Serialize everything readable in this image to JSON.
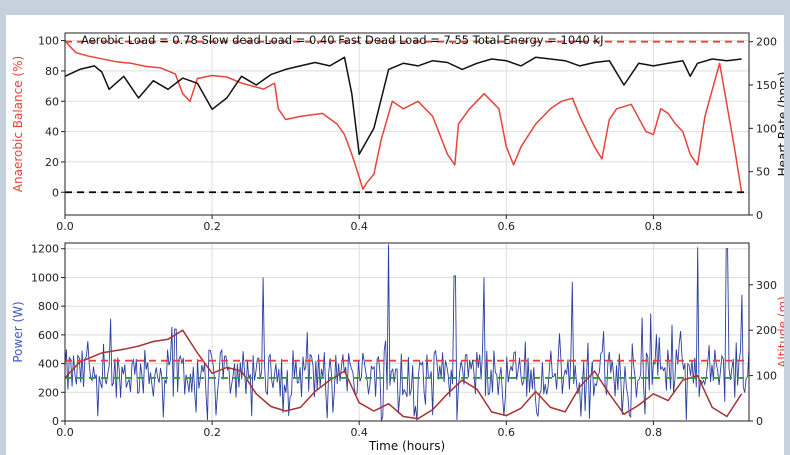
{
  "chart_data": [
    {
      "type": "line",
      "annotation": "Aerobic Load = 0.78    Slow dead Load = 0.40    Fast Dead Load = 7.55    Total Energy = 1040 kJ",
      "xlim": [
        0,
        0.93
      ],
      "xticks": [
        0.0,
        0.2,
        0.4,
        0.6,
        0.8
      ],
      "xtick_labels": [
        "0.0",
        "0.2",
        "0.4",
        "0.6",
        "0.8"
      ],
      "ylabel_left": "Anaerobic Balance (%)",
      "ylabel_right": "Heart Rate (bpm)",
      "ylim_left": [
        -15,
        105
      ],
      "yticks_left": [
        0,
        20,
        40,
        60,
        80,
        100
      ],
      "ylim_right": [
        0,
        210
      ],
      "yticks_right": [
        0,
        50,
        100,
        150,
        200
      ],
      "hlines": [
        {
          "axis": "left",
          "value": 0,
          "color": "#000000",
          "style": "dashed"
        },
        {
          "axis": "right",
          "value": 200,
          "color": "#e8433a",
          "style": "dashed"
        }
      ],
      "series": [
        {
          "axis": "left",
          "color": "#e8433a",
          "x": [
            0.0,
            0.005,
            0.015,
            0.03,
            0.05,
            0.07,
            0.09,
            0.11,
            0.13,
            0.15,
            0.16,
            0.17,
            0.18,
            0.2,
            0.22,
            0.24,
            0.27,
            0.285,
            0.29,
            0.3,
            0.32,
            0.35,
            0.37,
            0.38,
            0.39,
            0.4,
            0.405,
            0.41,
            0.42,
            0.43,
            0.445,
            0.46,
            0.48,
            0.5,
            0.52,
            0.53,
            0.535,
            0.55,
            0.57,
            0.59,
            0.6,
            0.61,
            0.62,
            0.64,
            0.66,
            0.675,
            0.69,
            0.7,
            0.72,
            0.73,
            0.74,
            0.75,
            0.77,
            0.79,
            0.8,
            0.81,
            0.82,
            0.83,
            0.84,
            0.85,
            0.86,
            0.87,
            0.89,
            0.91,
            0.92
          ],
          "y": [
            100,
            97,
            92,
            90,
            88,
            86,
            85,
            83,
            82,
            78,
            65,
            60,
            75,
            77,
            76,
            72,
            68,
            72,
            55,
            48,
            50,
            52,
            45,
            38,
            25,
            10,
            2,
            6,
            12,
            35,
            60,
            55,
            60,
            50,
            25,
            18,
            45,
            55,
            65,
            55,
            30,
            18,
            30,
            45,
            55,
            60,
            62,
            50,
            30,
            22,
            48,
            55,
            58,
            40,
            38,
            55,
            52,
            45,
            40,
            25,
            18,
            50,
            85,
            30,
            0
          ]
        },
        {
          "axis": "right",
          "color": "#111111",
          "x": [
            0.0,
            0.02,
            0.04,
            0.05,
            0.06,
            0.08,
            0.1,
            0.12,
            0.14,
            0.16,
            0.18,
            0.2,
            0.22,
            0.24,
            0.26,
            0.28,
            0.3,
            0.32,
            0.34,
            0.36,
            0.38,
            0.39,
            0.4,
            0.42,
            0.44,
            0.46,
            0.48,
            0.5,
            0.52,
            0.54,
            0.56,
            0.58,
            0.6,
            0.62,
            0.64,
            0.66,
            0.68,
            0.7,
            0.72,
            0.74,
            0.76,
            0.78,
            0.8,
            0.82,
            0.84,
            0.85,
            0.86,
            0.88,
            0.9,
            0.92
          ],
          "y": [
            160,
            168,
            172,
            165,
            145,
            160,
            135,
            155,
            145,
            158,
            152,
            122,
            135,
            160,
            150,
            162,
            168,
            172,
            176,
            172,
            182,
            140,
            70,
            100,
            168,
            175,
            172,
            178,
            176,
            168,
            175,
            180,
            178,
            172,
            182,
            180,
            178,
            172,
            176,
            178,
            150,
            175,
            172,
            175,
            178,
            160,
            175,
            180,
            178,
            180
          ]
        }
      ]
    },
    {
      "type": "line",
      "xlabel": "Time (hours)",
      "ylabel_left": "Power (W)",
      "ylabel_right": "Altitude (m)",
      "xlim": [
        0,
        0.93
      ],
      "xticks": [
        0.0,
        0.2,
        0.4,
        0.6,
        0.8
      ],
      "xtick_labels": [
        "0.0",
        "0.2",
        "0.4",
        "0.6",
        "0.8"
      ],
      "ylim_left": [
        0,
        1240
      ],
      "yticks_left": [
        0,
        200,
        400,
        600,
        800,
        1000,
        1200
      ],
      "ylim_right": [
        0,
        392
      ],
      "yticks_right": [
        0,
        100,
        200,
        300
      ],
      "hlines": [
        {
          "axis": "left",
          "value": 420,
          "color": "#e8433a",
          "style": "dashed"
        },
        {
          "axis": "left",
          "value": 300,
          "color": "#2ca02c",
          "style": "dashed"
        }
      ],
      "power_series": {
        "color": "#2b3f9e",
        "samples": 480,
        "mean": 330,
        "spread": 170,
        "peaks": [
          {
            "x": 0.15,
            "y": 640
          },
          {
            "x": 0.27,
            "y": 1000
          },
          {
            "x": 0.44,
            "y": 1230
          },
          {
            "x": 0.53,
            "y": 1010
          },
          {
            "x": 0.57,
            "y": 1000
          },
          {
            "x": 0.69,
            "y": 970
          },
          {
            "x": 0.86,
            "y": 1210
          },
          {
            "x": 0.9,
            "y": 1200
          },
          {
            "x": 0.92,
            "y": 880
          }
        ]
      },
      "series": [
        {
          "axis": "right",
          "color": "#a83232",
          "x": [
            0.0,
            0.02,
            0.05,
            0.08,
            0.1,
            0.12,
            0.14,
            0.16,
            0.18,
            0.2,
            0.22,
            0.24,
            0.26,
            0.28,
            0.3,
            0.32,
            0.34,
            0.36,
            0.38,
            0.4,
            0.42,
            0.44,
            0.46,
            0.48,
            0.5,
            0.52,
            0.54,
            0.56,
            0.58,
            0.6,
            0.62,
            0.64,
            0.66,
            0.68,
            0.7,
            0.72,
            0.74,
            0.76,
            0.78,
            0.8,
            0.82,
            0.84,
            0.86,
            0.88,
            0.9,
            0.92
          ],
          "y": [
            95,
            130,
            150,
            158,
            165,
            175,
            180,
            200,
            150,
            105,
            118,
            110,
            60,
            32,
            22,
            30,
            65,
            90,
            110,
            40,
            22,
            38,
            10,
            5,
            25,
            60,
            90,
            70,
            20,
            12,
            28,
            65,
            30,
            20,
            75,
            110,
            60,
            15,
            35,
            60,
            45,
            90,
            100,
            30,
            10,
            60
          ]
        }
      ]
    }
  ]
}
